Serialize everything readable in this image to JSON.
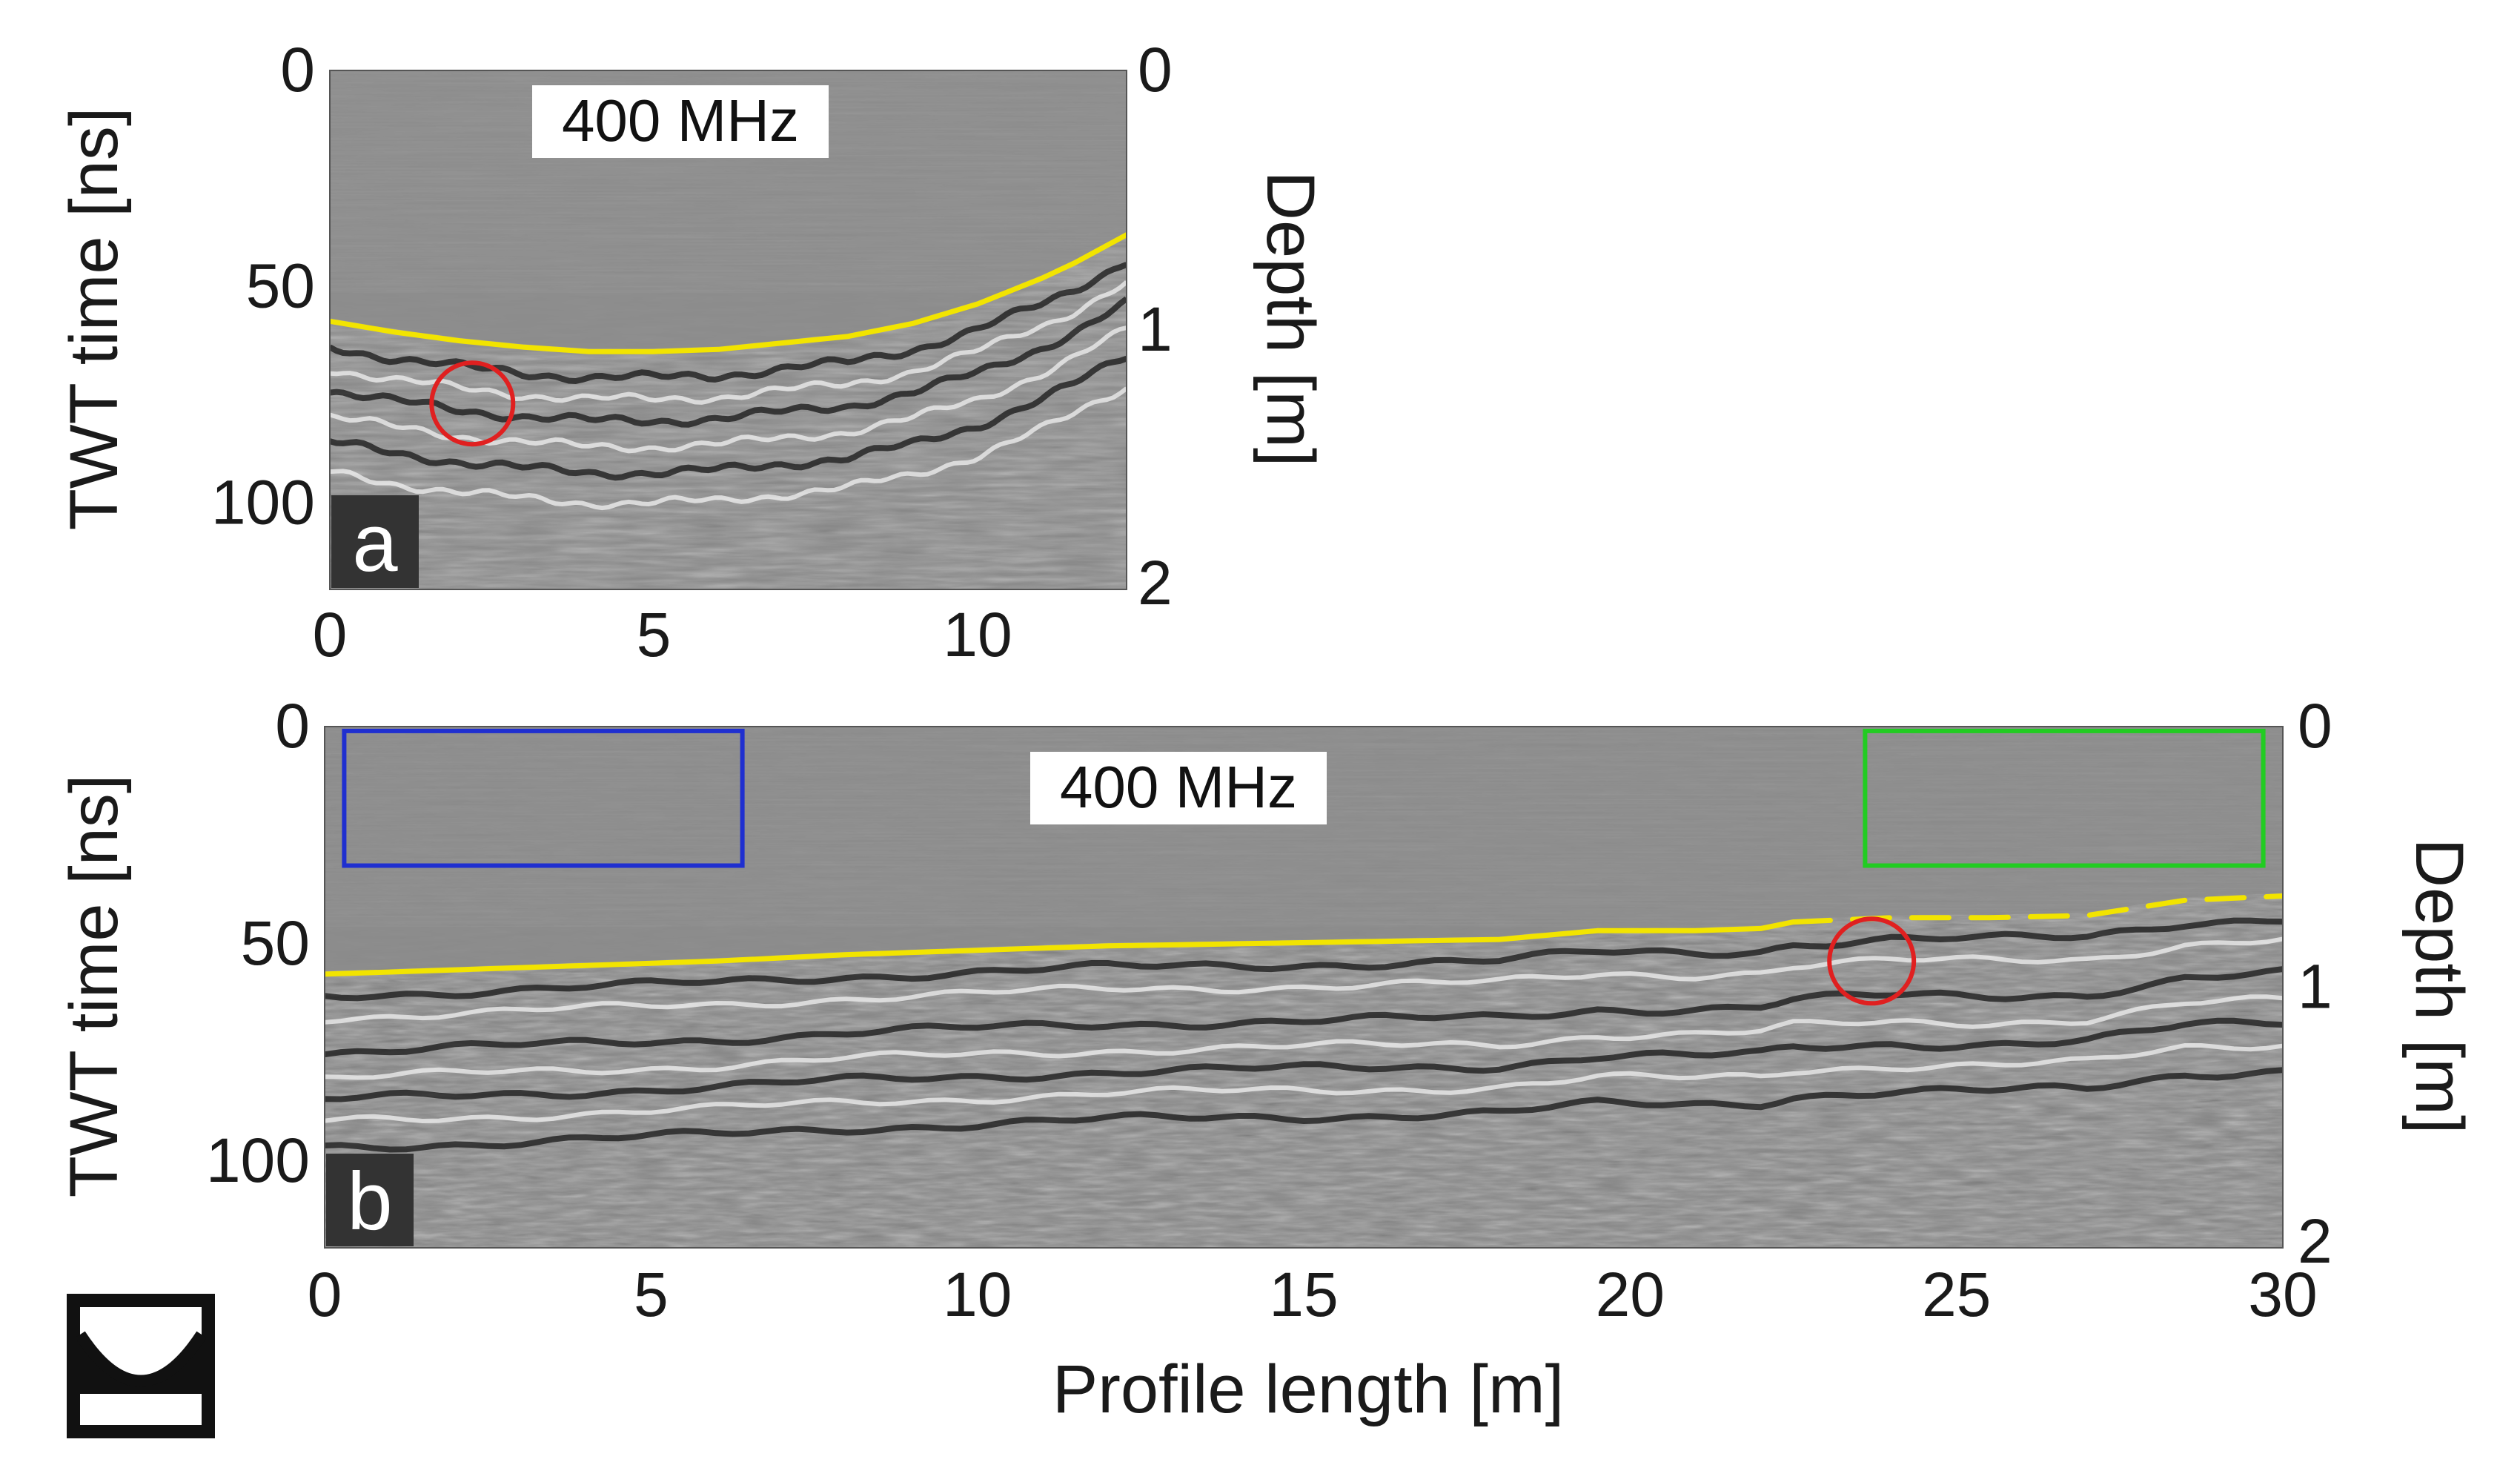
{
  "chart_data": [
    {
      "type": "radargram",
      "panel_label": "a",
      "frequency_label": "400 MHz",
      "xlabel": "",
      "ylabel": "TWT time [ns]",
      "y2label": "Depth [m]",
      "xlim": [
        0,
        12.3
      ],
      "ylim": [
        0,
        120
      ],
      "y2lim": [
        0,
        2
      ],
      "xticks": [
        "0",
        "5",
        "10"
      ],
      "xtick_values": [
        0,
        5,
        10
      ],
      "yticks": [
        "0",
        "50",
        "100"
      ],
      "ytick_values": [
        0,
        50,
        100
      ],
      "y2ticks": [
        "0",
        "1",
        "2"
      ],
      "y2tick_values": [
        0,
        1,
        2
      ],
      "interpreted_horizon": {
        "style": "solid",
        "color": "#f2e400",
        "x": [
          0,
          1,
          2,
          3,
          4,
          5,
          6,
          7,
          8,
          9,
          10,
          11,
          11.5,
          12.3
        ],
        "twt_ns": [
          58,
          60.5,
          62.5,
          64,
          65,
          65,
          64.5,
          63,
          61.5,
          58.5,
          54,
          48,
          44.5,
          38
        ]
      },
      "highlight_circles": [
        {
          "color": "#e02020",
          "x": 2.2,
          "twt_ns": 77
        }
      ]
    },
    {
      "type": "radargram",
      "panel_label": "b",
      "frequency_label": "400 MHz",
      "xlabel": "Profile length [m]",
      "ylabel": "TWT time [ns]",
      "y2label": "Depth [m]",
      "xlim": [
        0,
        30
      ],
      "ylim": [
        0,
        120
      ],
      "y2lim": [
        0,
        2
      ],
      "xticks": [
        "0",
        "5",
        "10",
        "15",
        "20",
        "25",
        "30"
      ],
      "xtick_values": [
        0,
        5,
        10,
        15,
        20,
        25,
        30
      ],
      "yticks": [
        "0",
        "50",
        "100"
      ],
      "ytick_values": [
        0,
        50,
        100
      ],
      "y2ticks": [
        "0",
        "1",
        "2"
      ],
      "y2tick_values": [
        0,
        1,
        2
      ],
      "interpreted_horizon": {
        "style": "solid",
        "color": "#f2e400",
        "x": [
          0,
          2,
          4,
          6,
          8,
          10,
          12,
          14,
          16,
          18,
          19.5,
          21,
          22,
          22.5
        ],
        "twt_ns": [
          57,
          56,
          55,
          54,
          52.5,
          51.5,
          50.5,
          50,
          49.5,
          49,
          47,
          47,
          46.5,
          45
        ]
      },
      "interpreted_horizon_extension": {
        "style": "dashed",
        "color": "#f2e400",
        "x": [
          22.5,
          24,
          25.5,
          27,
          28.5,
          30
        ],
        "twt_ns": [
          45,
          44,
          44,
          43.5,
          40,
          39
        ]
      },
      "highlight_circles": [
        {
          "color": "#e02020",
          "x": 23.7,
          "twt_ns": 54
        }
      ],
      "highlight_boxes": [
        {
          "color": "#1f2fd0",
          "x_range": [
            0.3,
            6.4
          ],
          "twt_range": [
            1,
            32
          ]
        },
        {
          "color": "#22cc22",
          "x_range": [
            23.6,
            29.7
          ],
          "twt_range": [
            1,
            32
          ]
        }
      ]
    }
  ]
}
